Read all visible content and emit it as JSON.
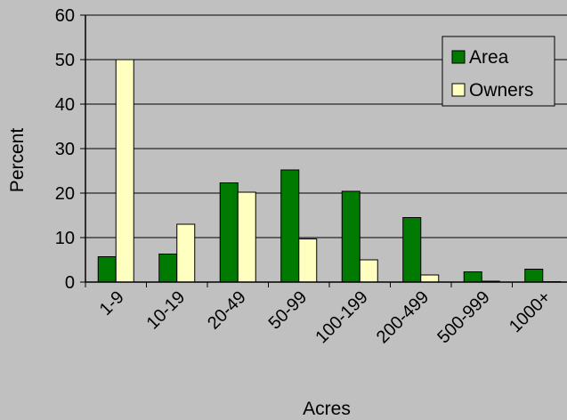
{
  "chart_data": {
    "type": "bar",
    "title": "",
    "xlabel": "Acres",
    "ylabel": "Percent",
    "ylim": [
      0,
      60
    ],
    "yticks": [
      0,
      10,
      20,
      30,
      40,
      50,
      60
    ],
    "grid": true,
    "legend_position": "top-right",
    "categories": [
      "1-9",
      "10-19",
      "20-49",
      "50-99",
      "100-199",
      "200-499",
      "500-999",
      "1000+"
    ],
    "series": [
      {
        "name": "Area",
        "color": "#007a00",
        "values": [
          5.7,
          6.3,
          22.3,
          25.2,
          20.4,
          14.5,
          2.3,
          2.9
        ]
      },
      {
        "name": "Owners",
        "color": "#ffffc0",
        "values": [
          50.0,
          13.0,
          20.2,
          9.7,
          5.0,
          1.6,
          0.2,
          0.1
        ]
      }
    ]
  }
}
